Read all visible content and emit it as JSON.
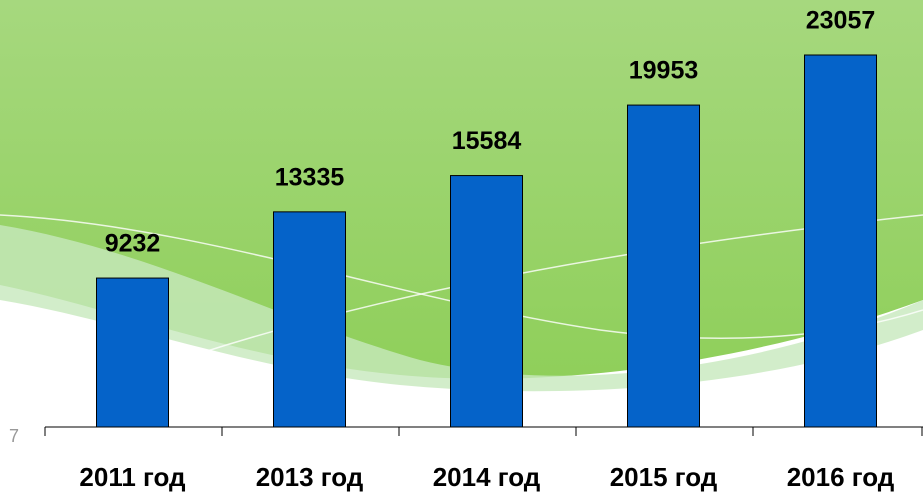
{
  "chart_data": {
    "type": "bar",
    "categories": [
      "2011 год",
      "2013 год",
      "2014 год",
      "2015 год",
      "2016 год"
    ],
    "values": [
      9232,
      13335,
      15584,
      19953,
      23057
    ],
    "color": "#0563c9"
  },
  "page_number": "7"
}
